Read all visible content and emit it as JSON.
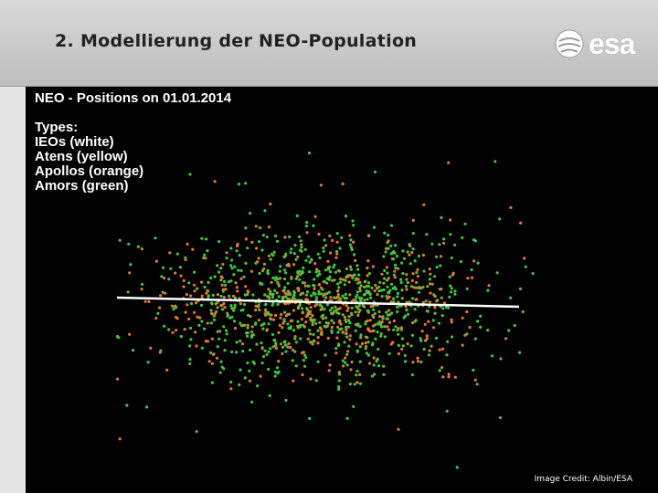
{
  "header": {
    "title": "2. Modellierung der NEO-Population",
    "logo": "esa"
  },
  "image": {
    "title": "NEO - Positions on 01.01.2014",
    "legend": {
      "heading": "Types:",
      "items": [
        "IEOs (white)",
        "Atens (yellow)",
        "Apollos (orange)",
        "Amors (green)"
      ]
    }
  },
  "credit": "Image Credit: Albin/ESA"
}
